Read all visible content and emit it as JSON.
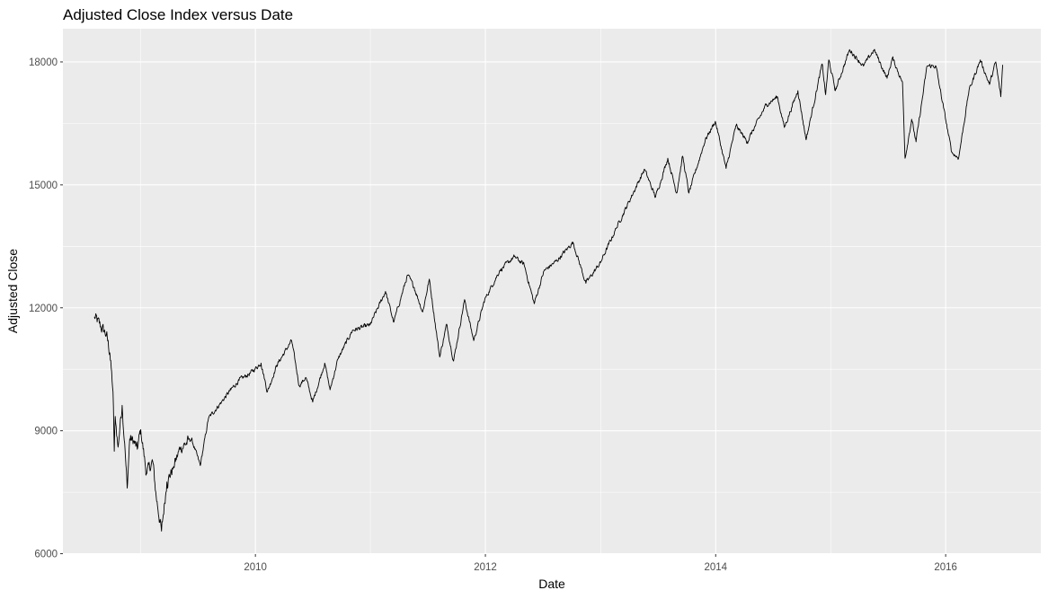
{
  "chart_data": {
    "type": "line",
    "title": "Adjusted Close Index versus Date",
    "xlabel": "Date",
    "ylabel": "Adjusted Close",
    "xlim": [
      "2008-04-30",
      "2016-10-29"
    ],
    "ylim": [
      5990,
      18810
    ],
    "x_ticks": [
      "2010",
      "2012",
      "2014",
      "2016"
    ],
    "y_ticks": [
      6000,
      9000,
      12000,
      15000,
      18000
    ],
    "grid": true,
    "legend": "none",
    "colors": {
      "panel": "#EBEBEB",
      "grid": "#FFFFFF",
      "line": "#000000"
    },
    "series": [
      {
        "points": [
          [
            "2008-08-08",
            11780
          ],
          [
            "2008-08-28",
            11540
          ],
          [
            "2008-09-15",
            11350
          ],
          [
            "2008-09-26",
            10900
          ],
          [
            "2008-10-06",
            9950
          ],
          [
            "2008-10-10",
            8500
          ],
          [
            "2008-10-13",
            9350
          ],
          [
            "2008-10-22",
            8600
          ],
          [
            "2008-10-28",
            9100
          ],
          [
            "2008-11-04",
            9620
          ],
          [
            "2008-11-12",
            8700
          ],
          [
            "2008-11-20",
            7600
          ],
          [
            "2008-11-28",
            8800
          ],
          [
            "2008-12-10",
            8750
          ],
          [
            "2008-12-22",
            8550
          ],
          [
            "2009-01-02",
            9030
          ],
          [
            "2009-01-20",
            7950
          ],
          [
            "2009-02-09",
            8250
          ],
          [
            "2009-02-20",
            7400
          ],
          [
            "2009-03-09",
            6550
          ],
          [
            "2009-03-26",
            7750
          ],
          [
            "2009-04-15",
            8100
          ],
          [
            "2009-05-08",
            8580
          ],
          [
            "2009-06-12",
            8800
          ],
          [
            "2009-07-10",
            8150
          ],
          [
            "2009-08-05",
            9300
          ],
          [
            "2009-09-15",
            9700
          ],
          [
            "2009-10-15",
            10000
          ],
          [
            "2009-11-10",
            10230
          ],
          [
            "2009-12-15",
            10400
          ],
          [
            "2010-01-19",
            10650
          ],
          [
            "2010-02-08",
            9950
          ],
          [
            "2010-03-10",
            10600
          ],
          [
            "2010-04-26",
            11200
          ],
          [
            "2010-05-20",
            10100
          ],
          [
            "2010-06-10",
            10300
          ],
          [
            "2010-07-02",
            9700
          ],
          [
            "2010-08-09",
            10650
          ],
          [
            "2010-08-26",
            10000
          ],
          [
            "2010-09-20",
            10750
          ],
          [
            "2010-11-05",
            11450
          ],
          [
            "2010-12-31",
            11580
          ],
          [
            "2011-02-18",
            12400
          ],
          [
            "2011-03-16",
            11650
          ],
          [
            "2011-04-29",
            12800
          ],
          [
            "2011-05-20",
            12500
          ],
          [
            "2011-06-16",
            11900
          ],
          [
            "2011-07-07",
            12700
          ],
          [
            "2011-08-09",
            10800
          ],
          [
            "2011-08-31",
            11600
          ],
          [
            "2011-09-22",
            10700
          ],
          [
            "2011-10-27",
            12200
          ],
          [
            "2011-11-25",
            11200
          ],
          [
            "2011-12-30",
            12200
          ],
          [
            "2012-02-15",
            12900
          ],
          [
            "2012-04-02",
            13250
          ],
          [
            "2012-05-03",
            13050
          ],
          [
            "2012-06-04",
            12100
          ],
          [
            "2012-07-05",
            12900
          ],
          [
            "2012-08-15",
            13150
          ],
          [
            "2012-10-05",
            13600
          ],
          [
            "2012-11-15",
            12600
          ],
          [
            "2012-12-31",
            13100
          ],
          [
            "2013-02-20",
            13950
          ],
          [
            "2013-05-20",
            15380
          ],
          [
            "2013-06-24",
            14700
          ],
          [
            "2013-08-02",
            15650
          ],
          [
            "2013-08-30",
            14800
          ],
          [
            "2013-09-18",
            15700
          ],
          [
            "2013-10-08",
            14800
          ],
          [
            "2013-11-29",
            16100
          ],
          [
            "2013-12-31",
            16550
          ],
          [
            "2014-02-03",
            15400
          ],
          [
            "2014-03-07",
            16450
          ],
          [
            "2014-04-11",
            16050
          ],
          [
            "2014-06-10",
            16950
          ],
          [
            "2014-07-16",
            17150
          ],
          [
            "2014-08-07",
            16400
          ],
          [
            "2014-09-19",
            17300
          ],
          [
            "2014-10-15",
            16100
          ],
          [
            "2014-12-05",
            17950
          ],
          [
            "2014-12-16",
            17200
          ],
          [
            "2014-12-26",
            18050
          ],
          [
            "2015-01-16",
            17300
          ],
          [
            "2015-03-02",
            18300
          ],
          [
            "2015-04-15",
            17900
          ],
          [
            "2015-05-19",
            18300
          ],
          [
            "2015-06-29",
            17600
          ],
          [
            "2015-07-16",
            18100
          ],
          [
            "2015-08-17",
            17500
          ],
          [
            "2015-08-25",
            15650
          ],
          [
            "2015-09-15",
            16600
          ],
          [
            "2015-09-29",
            16050
          ],
          [
            "2015-11-03",
            17900
          ],
          [
            "2015-12-01",
            17900
          ],
          [
            "2015-12-14",
            17350
          ],
          [
            "2016-01-20",
            15800
          ],
          [
            "2016-02-11",
            15650
          ],
          [
            "2016-03-15",
            17300
          ],
          [
            "2016-04-20",
            18050
          ],
          [
            "2016-05-19",
            17450
          ],
          [
            "2016-06-08",
            18000
          ],
          [
            "2016-06-24",
            17150
          ],
          [
            "2016-06-30",
            17930
          ]
        ]
      }
    ]
  }
}
